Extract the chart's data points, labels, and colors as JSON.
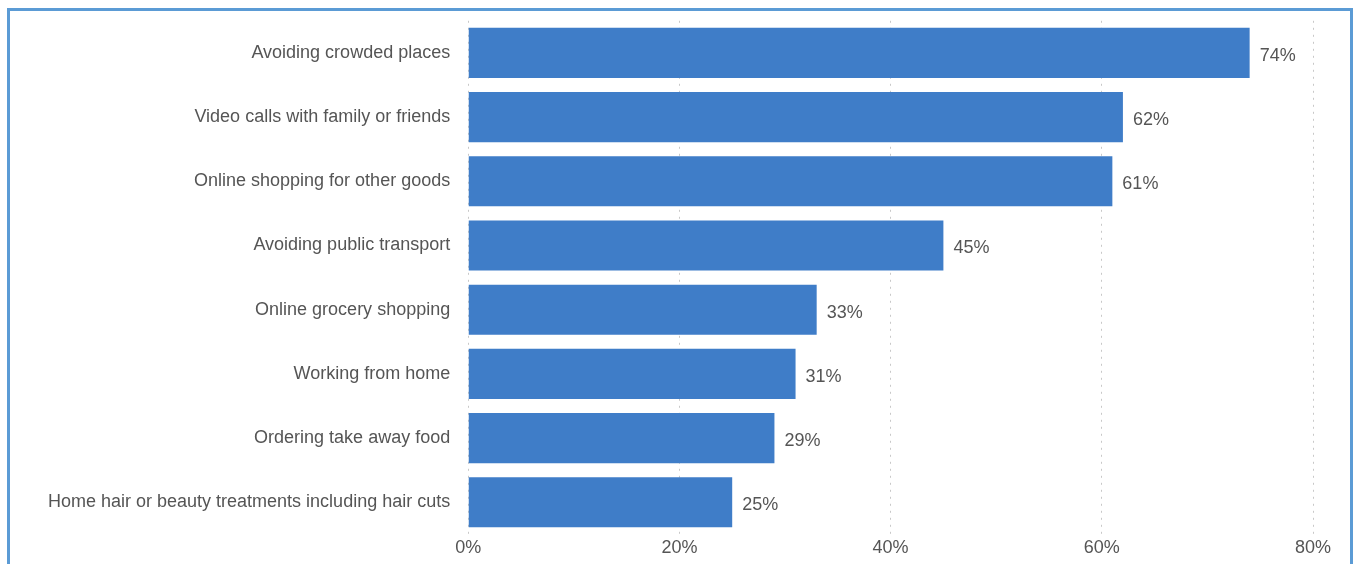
{
  "chart_data": {
    "type": "bar",
    "orientation": "horizontal",
    "categories": [
      "Avoiding crowded places",
      "Video calls with family or friends",
      "Online shopping for other goods",
      "Avoiding public transport",
      "Online grocery shopping",
      "Working from home",
      "Ordering take away food",
      "Home hair or beauty treatments including hair cuts"
    ],
    "values": [
      74,
      62,
      61,
      45,
      33,
      31,
      29,
      25
    ],
    "value_labels": [
      "74%",
      "62%",
      "61%",
      "45%",
      "33%",
      "31%",
      "29%",
      "25%"
    ],
    "color": "#3f7dc8",
    "xlim": [
      0,
      80
    ],
    "xticks": [
      {
        "value": 0,
        "label": "0%"
      },
      {
        "value": 20,
        "label": "20%"
      },
      {
        "value": 40,
        "label": "40%"
      },
      {
        "value": 60,
        "label": "60%"
      },
      {
        "value": 80,
        "label": "80%"
      }
    ],
    "grid": "x"
  }
}
